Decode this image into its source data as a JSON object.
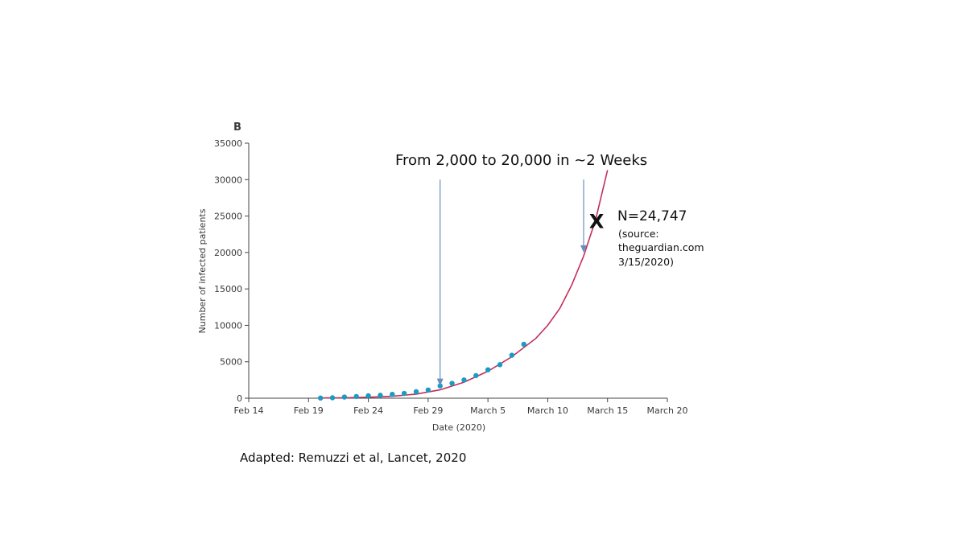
{
  "chart_data": {
    "type": "scatter",
    "panel_label": "B",
    "xlabel": "Date (2020)",
    "ylabel": "Number of infected patients",
    "ylim": [
      0,
      35000
    ],
    "yticks": [
      0,
      5000,
      10000,
      15000,
      20000,
      25000,
      30000,
      35000
    ],
    "ytick_labels": [
      "0",
      "5000",
      "10000",
      "15000",
      "20000",
      "25000",
      "30000",
      "35000"
    ],
    "xlim": [
      "2020-02-14",
      "2020-03-20"
    ],
    "xticks": [
      "2020-02-14",
      "2020-02-19",
      "2020-02-24",
      "2020-02-29",
      "2020-03-05",
      "2020-03-10",
      "2020-03-15",
      "2020-03-20"
    ],
    "xtick_labels": [
      "Feb 14",
      "Feb 19",
      "Feb 24",
      "Feb 29",
      "March 5",
      "March 10",
      "March 15",
      "March 20"
    ],
    "grid": false,
    "legend": "none",
    "series": [
      {
        "kind": "points",
        "color": "#1a9bc4",
        "points": [
          {
            "x": "2020-02-20",
            "y": 20
          },
          {
            "x": "2020-02-21",
            "y": 60
          },
          {
            "x": "2020-02-22",
            "y": 160
          },
          {
            "x": "2020-02-23",
            "y": 230
          },
          {
            "x": "2020-02-24",
            "y": 330
          },
          {
            "x": "2020-02-25",
            "y": 400
          },
          {
            "x": "2020-02-26",
            "y": 530
          },
          {
            "x": "2020-02-27",
            "y": 660
          },
          {
            "x": "2020-02-28",
            "y": 890
          },
          {
            "x": "2020-02-29",
            "y": 1130
          },
          {
            "x": "2020-03-01",
            "y": 1690
          },
          {
            "x": "2020-03-02",
            "y": 2040
          },
          {
            "x": "2020-03-03",
            "y": 2500
          },
          {
            "x": "2020-03-04",
            "y": 3100
          },
          {
            "x": "2020-03-05",
            "y": 3900
          },
          {
            "x": "2020-03-06",
            "y": 4600
          },
          {
            "x": "2020-03-07",
            "y": 5900
          },
          {
            "x": "2020-03-08",
            "y": 7400
          }
        ]
      },
      {
        "kind": "curve",
        "color": "#c0305a",
        "points": [
          {
            "x": "2020-02-20",
            "y": 30
          },
          {
            "x": "2020-02-22",
            "y": 60
          },
          {
            "x": "2020-02-24",
            "y": 130
          },
          {
            "x": "2020-02-26",
            "y": 270
          },
          {
            "x": "2020-02-28",
            "y": 560
          },
          {
            "x": "2020-03-01",
            "y": 1150
          },
          {
            "x": "2020-03-03",
            "y": 2200
          },
          {
            "x": "2020-03-05",
            "y": 3700
          },
          {
            "x": "2020-03-07",
            "y": 5700
          },
          {
            "x": "2020-03-09",
            "y": 8200
          },
          {
            "x": "2020-03-10",
            "y": 10000
          },
          {
            "x": "2020-03-11",
            "y": 12300
          },
          {
            "x": "2020-03-12",
            "y": 15500
          },
          {
            "x": "2020-03-13",
            "y": 19500
          },
          {
            "x": "2020-03-14",
            "y": 24500
          },
          {
            "x": "2020-03-15",
            "y": 31300
          }
        ]
      }
    ],
    "annotations": {
      "headline": "From 2,000 to 20,000 in ~2 Weeks",
      "arrows": [
        {
          "x": "2020-03-01",
          "y_from": 30000,
          "y_to": 1700
        },
        {
          "x": "2020-03-13",
          "y_from": 30000,
          "y_to": 20000
        }
      ],
      "marker": {
        "symbol": "X",
        "x": "2020-03-14",
        "y": 24000
      },
      "n_label": "N=24,747",
      "source_lines": [
        "(source:",
        "theguardian.com",
        "3/15/2020)"
      ]
    }
  },
  "credit": "Adapted: Remuzzi et al, Lancet, 2020"
}
